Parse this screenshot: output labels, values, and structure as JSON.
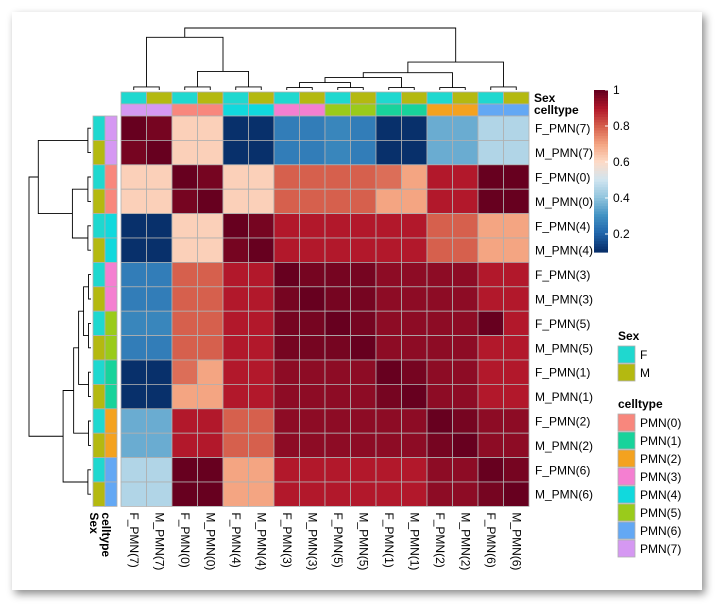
{
  "chart_data": {
    "type": "heatmap",
    "title": "",
    "labels": [
      "F_PMN(7)",
      "M_PMN(7)",
      "F_PMN(0)",
      "M_PMN(0)",
      "F_PMN(4)",
      "M_PMN(4)",
      "F_PMN(3)",
      "M_PMN(3)",
      "F_PMN(5)",
      "M_PMN(5)",
      "F_PMN(1)",
      "M_PMN(1)",
      "F_PMN(2)",
      "M_PMN(2)",
      "F_PMN(6)",
      "M_PMN(6)"
    ],
    "sex": [
      "F",
      "M",
      "F",
      "M",
      "F",
      "M",
      "F",
      "M",
      "F",
      "M",
      "F",
      "M",
      "F",
      "M",
      "F",
      "M"
    ],
    "celltype": [
      "PMN(7)",
      "PMN(7)",
      "PMN(0)",
      "PMN(0)",
      "PMN(4)",
      "PMN(4)",
      "PMN(3)",
      "PMN(3)",
      "PMN(5)",
      "PMN(5)",
      "PMN(1)",
      "PMN(1)",
      "PMN(2)",
      "PMN(2)",
      "PMN(6)",
      "PMN(6)"
    ],
    "matrix": [
      [
        1.0,
        0.98,
        0.62,
        0.62,
        0.1,
        0.1,
        0.25,
        0.25,
        0.27,
        0.25,
        0.1,
        0.1,
        0.35,
        0.35,
        0.45,
        0.45
      ],
      [
        0.98,
        1.0,
        0.62,
        0.62,
        0.1,
        0.1,
        0.25,
        0.25,
        0.27,
        0.25,
        0.1,
        0.1,
        0.35,
        0.35,
        0.45,
        0.45
      ],
      [
        0.62,
        0.62,
        1.0,
        0.98,
        0.62,
        0.62,
        0.8,
        0.8,
        0.8,
        0.8,
        0.78,
        0.7,
        0.9,
        0.9,
        1.0,
        1.0
      ],
      [
        0.62,
        0.62,
        0.98,
        1.0,
        0.62,
        0.62,
        0.8,
        0.8,
        0.8,
        0.8,
        0.7,
        0.7,
        0.9,
        0.9,
        1.0,
        1.0
      ],
      [
        0.1,
        0.1,
        0.62,
        0.62,
        1.0,
        0.98,
        0.9,
        0.9,
        0.9,
        0.9,
        0.9,
        0.9,
        0.8,
        0.8,
        0.7,
        0.7
      ],
      [
        0.1,
        0.1,
        0.62,
        0.62,
        0.98,
        1.0,
        0.9,
        0.9,
        0.9,
        0.9,
        0.9,
        0.9,
        0.8,
        0.8,
        0.7,
        0.7
      ],
      [
        0.25,
        0.25,
        0.8,
        0.8,
        0.9,
        0.9,
        1.0,
        0.98,
        0.98,
        0.98,
        0.95,
        0.95,
        0.95,
        0.95,
        0.9,
        0.9
      ],
      [
        0.25,
        0.25,
        0.8,
        0.8,
        0.9,
        0.9,
        0.98,
        1.0,
        0.98,
        0.98,
        0.95,
        0.95,
        0.95,
        0.95,
        0.9,
        0.9
      ],
      [
        0.27,
        0.27,
        0.8,
        0.8,
        0.9,
        0.9,
        0.98,
        0.98,
        1.0,
        0.98,
        0.95,
        0.95,
        0.95,
        0.95,
        1.0,
        0.9
      ],
      [
        0.25,
        0.25,
        0.8,
        0.8,
        0.9,
        0.9,
        0.98,
        0.98,
        0.98,
        1.0,
        0.95,
        0.95,
        0.95,
        0.95,
        0.9,
        0.9
      ],
      [
        0.1,
        0.1,
        0.78,
        0.7,
        0.9,
        0.9,
        0.95,
        0.95,
        0.95,
        0.95,
        1.0,
        0.98,
        0.95,
        0.95,
        0.9,
        0.9
      ],
      [
        0.1,
        0.1,
        0.7,
        0.7,
        0.9,
        0.9,
        0.95,
        0.95,
        0.95,
        0.95,
        0.98,
        1.0,
        0.95,
        0.95,
        0.9,
        0.9
      ],
      [
        0.35,
        0.35,
        0.9,
        0.9,
        0.8,
        0.8,
        0.95,
        0.95,
        0.95,
        0.95,
        0.95,
        0.95,
        1.0,
        0.98,
        0.95,
        0.95
      ],
      [
        0.35,
        0.35,
        0.9,
        0.9,
        0.8,
        0.8,
        0.95,
        0.95,
        0.95,
        0.95,
        0.95,
        0.95,
        0.98,
        1.0,
        0.95,
        0.95
      ],
      [
        0.45,
        0.45,
        1.0,
        1.0,
        0.7,
        0.7,
        0.9,
        0.9,
        0.9,
        0.9,
        0.9,
        0.9,
        0.95,
        0.95,
        1.0,
        0.98
      ],
      [
        0.45,
        0.45,
        1.0,
        1.0,
        0.7,
        0.7,
        0.9,
        0.9,
        0.9,
        0.9,
        0.9,
        0.9,
        0.95,
        0.95,
        0.98,
        1.0
      ]
    ],
    "colorbar": {
      "range": [
        0.1,
        1
      ],
      "ticks": [
        "0.2",
        "0.4",
        "0.6",
        "0.8",
        "1"
      ],
      "tick_values": [
        0.2,
        0.4,
        0.6,
        0.8,
        1.0
      ],
      "colors": [
        "#08306B",
        "#2166AC",
        "#4393C3",
        "#92C5DE",
        "#D1E5F0",
        "#FDDBC7",
        "#F4A582",
        "#D6604D",
        "#B2182B",
        "#67001F"
      ]
    },
    "annotation_titles": {
      "sex": "Sex",
      "celltype": "celltype"
    },
    "legend_sex": {
      "title": "Sex",
      "items": [
        {
          "label": "F",
          "color": "#1FD8CF"
        },
        {
          "label": "M",
          "color": "#B4B910"
        }
      ]
    },
    "legend_celltype": {
      "title": "celltype",
      "items": [
        {
          "label": "PMN(0)",
          "color": "#F8877D"
        },
        {
          "label": "PMN(1)",
          "color": "#18D39B"
        },
        {
          "label": "PMN(2)",
          "color": "#F4A21F"
        },
        {
          "label": "PMN(3)",
          "color": "#F47FD1"
        },
        {
          "label": "PMN(4)",
          "color": "#11D9DD"
        },
        {
          "label": "PMN(5)",
          "color": "#9ACB1B"
        },
        {
          "label": "PMN(6)",
          "color": "#63A8F4"
        },
        {
          "label": "PMN(7)",
          "color": "#D598F2"
        }
      ]
    }
  }
}
